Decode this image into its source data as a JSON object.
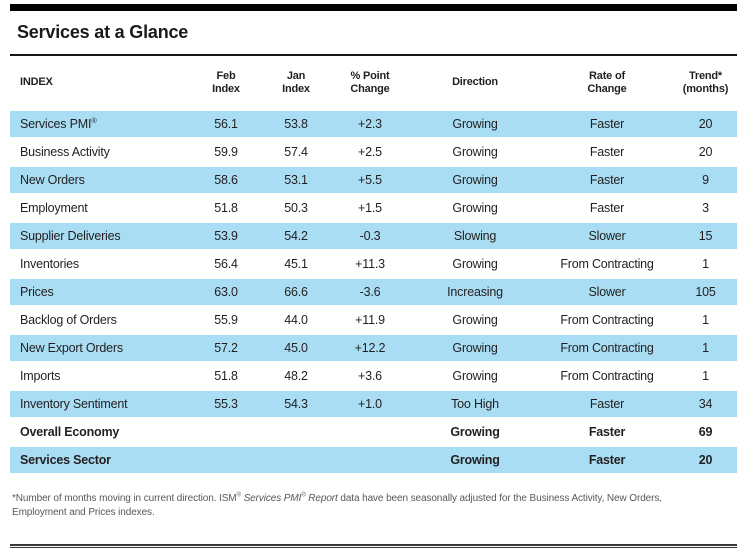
{
  "page": {
    "title": "Services at a Glance",
    "report_period": "Feb",
    "prior_period": "Jan"
  },
  "colors": {
    "row_shade": "#A9DDF3",
    "text": "#231F20",
    "footnote_text": "#56585A",
    "rule": "#000000"
  },
  "table": {
    "columns": [
      {
        "key": "index",
        "label": "INDEX",
        "align": "left"
      },
      {
        "key": "feb",
        "label": "Feb\nIndex",
        "align": "center"
      },
      {
        "key": "jan",
        "label": "Jan\nIndex",
        "align": "center"
      },
      {
        "key": "change",
        "label": "% Point\nChange",
        "align": "center"
      },
      {
        "key": "direction",
        "label": "Direction",
        "align": "center"
      },
      {
        "key": "rate",
        "label": "Rate of\nChange",
        "align": "center"
      },
      {
        "key": "trend",
        "label": "Trend*\n(months)",
        "align": "center"
      }
    ],
    "rows": [
      {
        "index": "Services PMI®",
        "feb": "56.1",
        "jan": "53.8",
        "change": "+2.3",
        "direction": "Growing",
        "rate": "Faster",
        "trend": "20",
        "shaded": true,
        "emphasis": false
      },
      {
        "index": "Business Activity",
        "feb": "59.9",
        "jan": "57.4",
        "change": "+2.5",
        "direction": "Growing",
        "rate": "Faster",
        "trend": "20",
        "shaded": false,
        "emphasis": false
      },
      {
        "index": "New Orders",
        "feb": "58.6",
        "jan": "53.1",
        "change": "+5.5",
        "direction": "Growing",
        "rate": "Faster",
        "trend": "9",
        "shaded": true,
        "emphasis": false
      },
      {
        "index": "Employment",
        "feb": "51.8",
        "jan": "50.3",
        "change": "+1.5",
        "direction": "Growing",
        "rate": "Faster",
        "trend": "3",
        "shaded": false,
        "emphasis": false
      },
      {
        "index": "Supplier Deliveries",
        "feb": "53.9",
        "jan": "54.2",
        "change": "-0.3",
        "direction": "Slowing",
        "rate": "Slower",
        "trend": "15",
        "shaded": true,
        "emphasis": false
      },
      {
        "index": "Inventories",
        "feb": "56.4",
        "jan": "45.1",
        "change": "+11.3",
        "direction": "Growing",
        "rate": "From Contracting",
        "trend": "1",
        "shaded": false,
        "emphasis": false
      },
      {
        "index": "Prices",
        "feb": "63.0",
        "jan": "66.6",
        "change": "-3.6",
        "direction": "Increasing",
        "rate": "Slower",
        "trend": "105",
        "shaded": true,
        "emphasis": false
      },
      {
        "index": "Backlog of Orders",
        "feb": "55.9",
        "jan": "44.0",
        "change": "+11.9",
        "direction": "Growing",
        "rate": "From Contracting",
        "trend": "1",
        "shaded": false,
        "emphasis": false
      },
      {
        "index": "New Export Orders",
        "feb": "57.2",
        "jan": "45.0",
        "change": "+12.2",
        "direction": "Growing",
        "rate": "From Contracting",
        "trend": "1",
        "shaded": true,
        "emphasis": false
      },
      {
        "index": "Imports",
        "feb": "51.8",
        "jan": "48.2",
        "change": "+3.6",
        "direction": "Growing",
        "rate": "From Contracting",
        "trend": "1",
        "shaded": false,
        "emphasis": false
      },
      {
        "index": "Inventory Sentiment",
        "feb": "55.3",
        "jan": "54.3",
        "change": "+1.0",
        "direction": "Too High",
        "rate": "Faster",
        "trend": "34",
        "shaded": true,
        "emphasis": false
      },
      {
        "index": "Overall Economy",
        "feb": "",
        "jan": "",
        "change": "",
        "direction": "Growing",
        "rate": "Faster",
        "trend": "69",
        "shaded": false,
        "emphasis": true
      },
      {
        "index": "Services Sector",
        "feb": "",
        "jan": "",
        "change": "",
        "direction": "Growing",
        "rate": "Faster",
        "trend": "20",
        "shaded": true,
        "emphasis": true
      }
    ]
  },
  "footnote": {
    "parts": [
      {
        "text": "*Number of months moving in current direction. ISM",
        "italic": false,
        "sup": false
      },
      {
        "text": "®",
        "italic": false,
        "sup": true
      },
      {
        "text": " ",
        "italic": false,
        "sup": false
      },
      {
        "text": "Services PMI",
        "italic": true,
        "sup": false
      },
      {
        "text": "®",
        "italic": true,
        "sup": true
      },
      {
        "text": " Report",
        "italic": true,
        "sup": false
      },
      {
        "text": " data have been seasonally adjusted for the Business Activity, New Orders, Employment and Prices indexes.",
        "italic": false,
        "sup": false
      }
    ]
  }
}
